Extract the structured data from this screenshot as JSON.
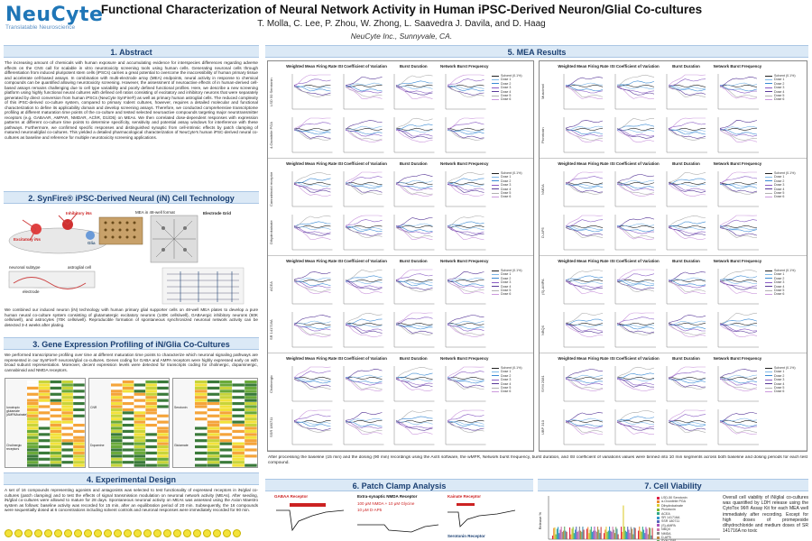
{
  "logo": {
    "name": "NeuCyte",
    "tagline": "Translatable Neuroscience"
  },
  "header": {
    "title": "Functional Characterization of Neural Network Activity in Human iPSC-Derived Neuron/Glial Co-cultures",
    "authors": "T. Molla, C. Lee, P. Zhou, W. Zhong, L. Saavedra J. Davila, and D. Haag",
    "affiliation": "NeuCyte Inc., Sunnyvale, CA."
  },
  "sections": {
    "abstract": "1. Abstract",
    "synfire": "2. SynFire® iPSC-Derived Neural (iN) Cell Technology",
    "gene": "3. Gene Expression Profiling of iN/Glia Co-Cultures",
    "experimental": "4. Experimental Design",
    "mea": "5. MEA Results",
    "patch": "6. Patch Clamp Analysis",
    "viability": "7. Cell Viability"
  },
  "abstract_text": "The increasing amount of chemicals with human exposure and accumulating evidence for interspecies differences regarding adverse effects on the CNS call for scalable in vitro neurotoxicity screening tools using human cells. Generating neuronal cells through differentiation from induced pluripotent stem cells (iPSCs) carries a great potential to overcome the inaccessibility of human primary tissue and accelerate cell-based assays. In combination with multi-electrode array (MEA) endpoints, neural activity in response to chemical compounds can be quantified allowing neurotoxicity screening. However, the assessment of neuroactive effects of in human-derived cell-based assays remains challenging due to cell type variability and poorly defined functional profiles. Here, we describe a new screening platform using highly functional neural cultures with defined cell ratios consisting of excitatory and inhibitory neurons that were separately generated by direct conversion from human iPSCs (NeuCyte SynFire®) as well as primary human astroglial cells. The reduced complexity of this iPSC-derived co-culture system, compared to primary rodent cultures, however, requires a detailed molecular and functional characterization to define its applicability domain and develop screening assays. Therefore, we conducted comprehensive transcriptome profiling at different maturation time points of the co-culture and tested selected neuroactive compounds targeting major neurotransmitter receptors (e.g. GABAAR, AMPAR, NMDAR, AChR, D1/D5) on MEAs. We then correlated dose-dependent responses with expression patterns at different co-culture time points to determine specificity, sensitivity and potential assay windows for interference with these pathways. Furthermore, we confirmed specific responses and distinguished synaptic from cell-intrinsic effects by patch clamping of matured neuronal/glial co-cultures. This yielded a detailed pharmacological characterization of NeuCyte's human iPSC-derived neural co-cultures as baseline and reference for multiple neurotoxicity screening applications.",
  "synfire": {
    "excitatory": "Excitatory iNs",
    "inhibitory": "Inhibitory iNs",
    "glia": "Glia",
    "mea_label": "MEA in 48-well format",
    "grid_label": "Electrode Grid",
    "neuronal_cell_label": "neuronal subtype",
    "astroglial_label": "astroglial cell",
    "electrode_label": "electrode",
    "caption": "We combined our induced neuron (iN) technology with human primary glial supporter cells on 48-well MEA plates to develop a pure human neural co-culture system consisting of glutamatergic excitatory neurons (140K cells/well), GABAergic inhibitory neurons (60K cells/well), and astrocytes (70K cells/well). Reproducible formation of spontaneous synchronized neuronal network activity can be detected 3-4 weeks after plating."
  },
  "gene_text": "We performed transcriptome profiling over time at different maturation time points to characterize which neuronal signaling pathways are represented in our SynFire® neurons/glial co-cultures. Genes coding for GABA and AMPA receptors were highly expressed early on with broad subunit representation. Moreover, decent expression levels were detected for transcripts coding for cholinergic, dopaminergic, cannabinoid and NMDA receptors.",
  "gene_tables": {
    "left_labels": [
      "Ionotropic glutamate (AMPA/kainate)",
      "Cholinergic receptors"
    ],
    "mid_labels": [
      "CNR",
      "Dopamine"
    ],
    "right_labels": [
      "Serotonin",
      "Glutamate"
    ]
  },
  "experimental_text": "A set of 16 compounds representing agonists and antagonists was selected to test functionality of expressed receptors in iN/glial co-cultures (patch clamping) and to test the effects of signal transmission modulation on neuronal network activity (MEAs). After seeding, iN/glial co-cultures were allowed to mature for 28 days. Spontaneous neuronal activity on MEAs was assessed using the Axion Maestro system as follows: baseline activity was recorded for 15 min, after an equilibration period of 20 min. Subsequently, the 16 compounds were sequentially dosed at 6 concentrations including solvent controls and neuronal responses were immediately recorded for 90 min.",
  "mea": {
    "columns": [
      "Weighted Mean Firing Rate",
      "ISI Coefficient of Variation",
      "Burst Duration",
      "Network Burst Frequency"
    ],
    "left_rows": [
      [
        "LSD 50 Serotonin",
        "4-Oxonitrile PGA"
      ],
      [
        "Cannabinoid receptor",
        "Dihydrokainate"
      ],
      [
        "ACEA",
        "SR 141716A"
      ],
      [
        "Cholinergic",
        "SSR 180711"
      ]
    ],
    "right_rows": [
      [
        "Muscimol",
        "Picrotoxin"
      ],
      [
        "NMDA",
        "D-AP5"
      ],
      [
        "(S)-AMPA",
        "NBQX"
      ],
      [
        "SYM 2081",
        "UBP 310"
      ]
    ],
    "legend": [
      "Solvent (0.1%)",
      "Dose 1",
      "Dose 2",
      "Dose 3",
      "Dose 4",
      "Dose 5",
      "Dose 6"
    ],
    "ylabel": "Normalized Metric",
    "caption": "After processing the baseline (15 min) and the dosing (90 min) recordings using the AxIS software, the wMFR, Network burst frequency, burst duration, and ISI coefficient of variations values were binned into 10 min segments across both baseline and dosing periods for each test compound."
  },
  "patch": {
    "gaba": "GABAA Receptor",
    "nmda": "Extra-synaptic NMDA Receptor",
    "kainate": "Kainate Receptor",
    "serotonin": "Serotonin Receptor",
    "nmda_line1": "100 μM NMDA + 10 μM Glycine",
    "nmda_line2": "10 μM D-AP5"
  },
  "viability": {
    "legend": [
      "LSD-50 Serotonin",
      "α-Oxonitrile PGA",
      "Dihydrokainate",
      "Picrotoxin",
      "ACEA",
      "SR 141716A",
      "SSR 180711",
      "(S)-AMPA",
      "NBQX",
      "NMDA",
      "D-AP5",
      "SYM 2081",
      "UBP 310",
      "Muscimol"
    ],
    "ylabel": "Release %",
    "text": "Overall cell viability of iN/glial co-cultures was quantified by LDH release using the CytoTox 96® Assay Kit for each MEA well immediately after recording. Except for high doses of promepeside dihydrochloride and medium doses of SR 141716A no toxic"
  },
  "colors": {
    "accent": "#1f76b7",
    "section_bg": "#dbe9f6",
    "section_text": "#1a3f72",
    "dose_colors": [
      "#222222",
      "#7fb8e8",
      "#3a8ad4",
      "#8a5cc4",
      "#5a3a99",
      "#b0b0b0",
      "#cc99dd"
    ]
  }
}
